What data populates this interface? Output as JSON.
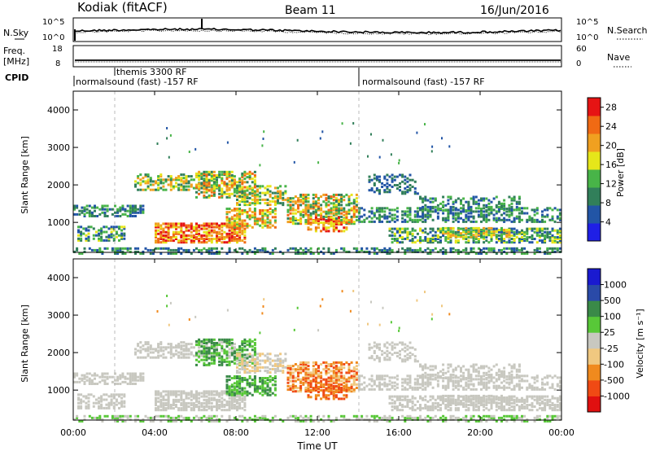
{
  "header": {
    "station": "Kodiak (fitACF)",
    "beam": "Beam 11",
    "date": "16/Jun/2016"
  },
  "chart_data": [
    {
      "type": "line",
      "name": "sky-noise-panel",
      "left_label": "N.Sky",
      "left_ticks": [
        "10^5",
        "10^0"
      ],
      "right_label": "N.Search",
      "right_ticks": [
        "10^5",
        "10^0"
      ]
    },
    {
      "type": "line",
      "name": "frequency-panel",
      "left_label_line1": "Freq.",
      "left_label_line2": "[MHz]",
      "left_ticks": [
        "18",
        "8"
      ],
      "right_label": "Nave",
      "right_ticks": [
        "60",
        "0"
      ]
    },
    {
      "type": "table",
      "name": "cpid-panel",
      "label": "CPID",
      "programs": [
        {
          "text": "themis 3300 RF",
          "start_hour": 2.0
        },
        {
          "text": "normalsound (fast) -157 RF",
          "start_hour": 0.0
        },
        {
          "text": "normalsound (fast) -157 RF",
          "start_hour": 14.0
        }
      ]
    },
    {
      "type": "heatmap",
      "name": "power-panel",
      "ylabel": "Slant Range [km]",
      "yticks": [
        "1000",
        "2000",
        "3000",
        "4000"
      ],
      "ylim": [
        200,
        4500
      ],
      "colorbar_label": "Power [dB]",
      "colorbar_ticks": [
        "4",
        "8",
        "12",
        "16",
        "20",
        "24",
        "28"
      ],
      "clim": [
        0,
        30
      ]
    },
    {
      "type": "heatmap",
      "name": "velocity-panel",
      "ylabel": "Slant Range [km]",
      "yticks": [
        "1000",
        "2000",
        "3000",
        "4000"
      ],
      "ylim": [
        200,
        4500
      ],
      "colorbar_label": "Velocity [m s⁻¹]",
      "colorbar_ticks": [
        "1000",
        "500",
        "100",
        "25",
        "-25",
        "-100",
        "-500",
        "-1000"
      ]
    }
  ],
  "xaxis": {
    "label": "Time UT",
    "ticks": [
      "00:00",
      "04:00",
      "08:00",
      "12:00",
      "16:00",
      "20:00",
      "00:00"
    ],
    "xlim_hours": [
      0,
      24
    ]
  },
  "colors": {
    "power": [
      "#1f1fe6",
      "#2255a6",
      "#317f5a",
      "#48b448",
      "#e6e61a",
      "#f0a020",
      "#f06a14",
      "#e61414"
    ],
    "velocity": [
      "#e01010",
      "#f04a14",
      "#f08a1e",
      "#f0c880",
      "#c8c8c0",
      "#58c838",
      "#3a8a48",
      "#2a4aa8",
      "#1a1ad0"
    ]
  }
}
